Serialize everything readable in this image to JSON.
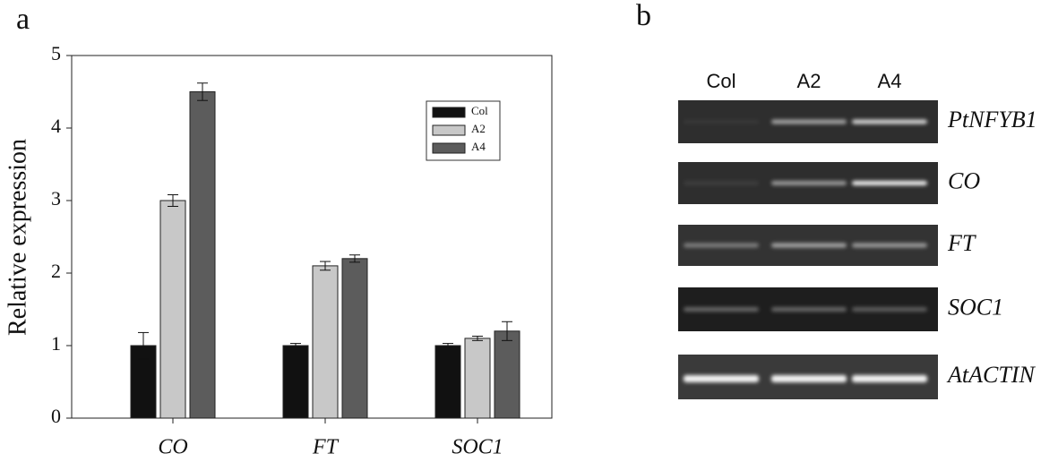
{
  "panel_labels": [
    "a",
    "b"
  ],
  "chart_data": {
    "type": "bar",
    "y_label": "Relative expression",
    "categories": [
      "CO",
      "FT",
      "SOC1"
    ],
    "series": [
      {
        "name": "Col",
        "color": "#111111",
        "values": [
          1.0,
          1.0,
          1.0
        ],
        "errors": [
          0.18,
          0.03,
          0.03
        ]
      },
      {
        "name": "A2",
        "color": "#c8c8c8",
        "values": [
          3.0,
          2.1,
          1.1
        ],
        "errors": [
          0.08,
          0.06,
          0.03
        ]
      },
      {
        "name": "A4",
        "color": "#5c5c5c",
        "values": [
          4.5,
          2.2,
          1.2
        ],
        "errors": [
          0.12,
          0.05,
          0.13
        ]
      }
    ],
    "ylim": [
      0,
      5
    ],
    "yticks": [
      0,
      1,
      2,
      3,
      4,
      5
    ],
    "legend": "upper-right"
  },
  "gel": {
    "lanes": [
      "Col",
      "A2",
      "A4"
    ],
    "rows": [
      "PtNFYB1",
      "CO",
      "FT",
      "SOC1",
      "AtACTIN"
    ]
  }
}
